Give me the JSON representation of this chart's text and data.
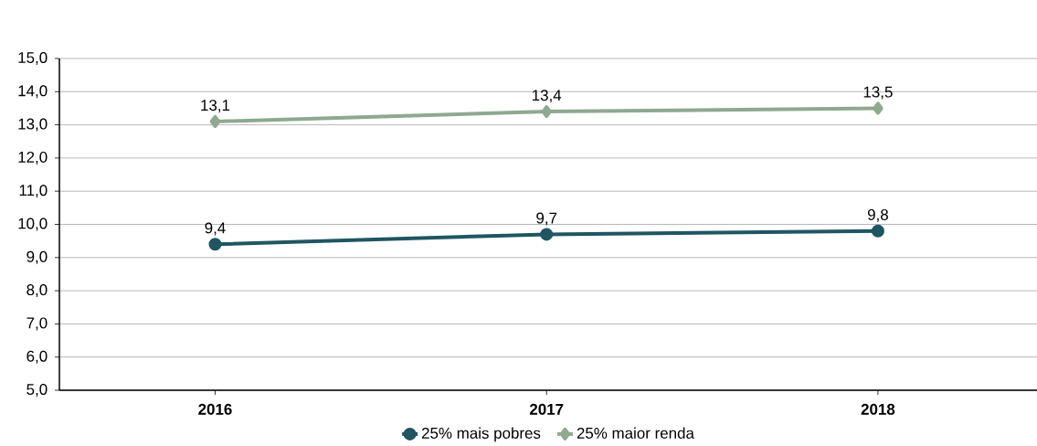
{
  "chart_data": {
    "type": "line",
    "categories": [
      "2016",
      "2017",
      "2018"
    ],
    "series": [
      {
        "name": "25% mais pobres",
        "color": "#1f5662",
        "marker": "circle",
        "values": [
          9.4,
          9.7,
          9.8
        ],
        "value_labels": [
          "9,4",
          "9,7",
          "9,8"
        ]
      },
      {
        "name": "25% maior renda",
        "color": "#8fa890",
        "marker": "diamond",
        "values": [
          13.1,
          13.4,
          13.5
        ],
        "value_labels": [
          "13,1",
          "13,4",
          "13,5"
        ]
      }
    ],
    "ylim": [
      5,
      15
    ],
    "yticks": [
      {
        "value": 5,
        "label": "5,0"
      },
      {
        "value": 6,
        "label": "6,0"
      },
      {
        "value": 7,
        "label": "7,0"
      },
      {
        "value": 8,
        "label": "8,0"
      },
      {
        "value": 9,
        "label": "9,0"
      },
      {
        "value": 10,
        "label": "10,0"
      },
      {
        "value": 11,
        "label": "11,0"
      },
      {
        "value": 12,
        "label": "12,0"
      },
      {
        "value": 13,
        "label": "13,0"
      },
      {
        "value": 14,
        "label": "14,0"
      },
      {
        "value": 15,
        "label": "15,0"
      }
    ],
    "grid": "y",
    "legend": "bottom",
    "line_style": "solid"
  }
}
